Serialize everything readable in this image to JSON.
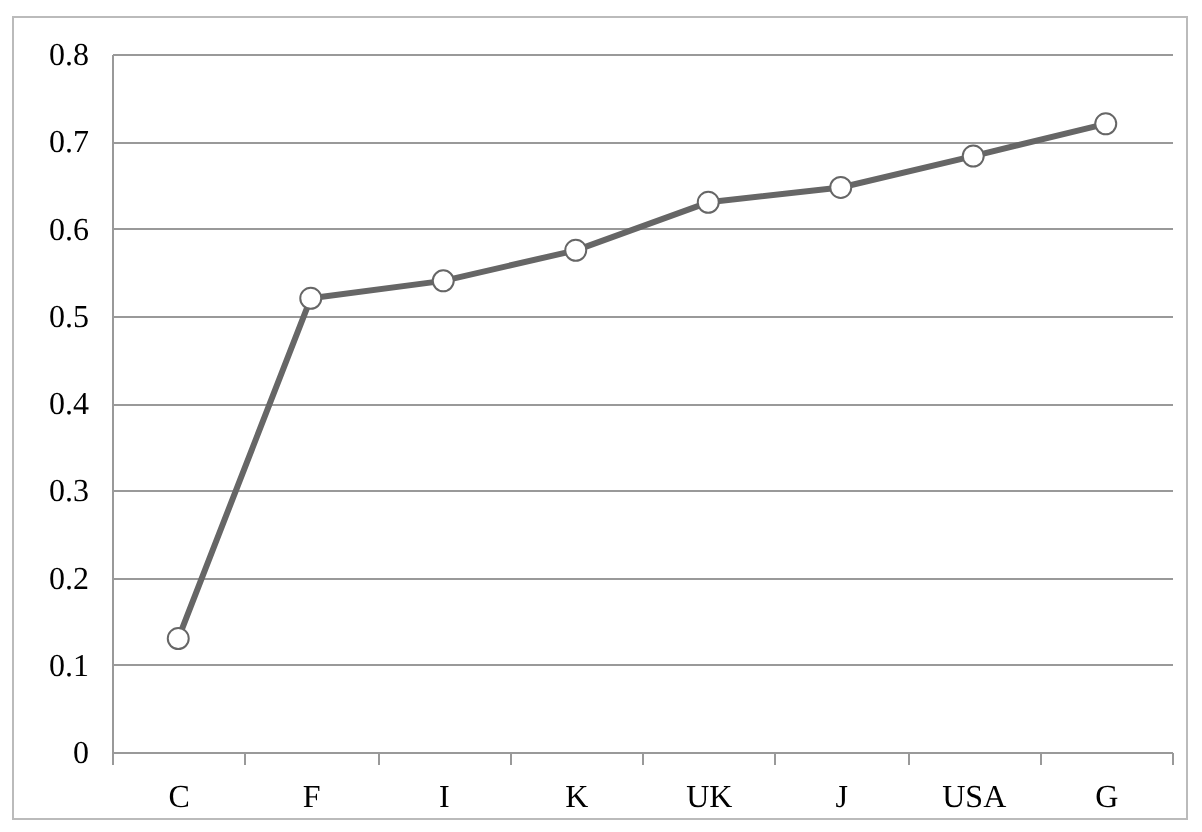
{
  "chart_data": {
    "type": "line",
    "categories": [
      "C",
      "F",
      "I",
      "K",
      "UK",
      "J",
      "USA",
      "G"
    ],
    "series": [
      {
        "color": "#666666",
        "values": [
          0.13,
          0.52,
          0.54,
          0.575,
          0.63,
          0.647,
          0.683,
          0.72
        ]
      }
    ],
    "ylim": [
      0,
      0.8
    ],
    "yticks": [
      {
        "value": 0,
        "label": "0"
      },
      0.1,
      0.2,
      0.3,
      0.4,
      0.5,
      0.6,
      0.7,
      0.8
    ],
    "grid": "y",
    "marker": "circle"
  }
}
